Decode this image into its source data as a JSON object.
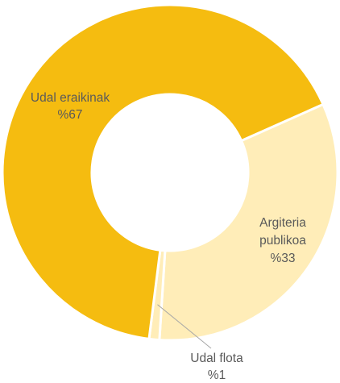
{
  "chart_data": {
    "type": "pie",
    "subtype": "donut",
    "title": "",
    "slices": [
      {
        "name_lines": [
          "Argiteria",
          "publikoa"
        ],
        "value_label": "%33",
        "value": 33,
        "color": "#FFEDB8"
      },
      {
        "name_lines": [
          "Udal flota"
        ],
        "value_label": "%1",
        "value": 1,
        "color": "#FFEDB8"
      },
      {
        "name_lines": [
          "Udal eraikinak"
        ],
        "value_label": "%67",
        "value": 67,
        "color": "#F5BC10"
      }
    ],
    "separator_color": "#ffffff",
    "leader_line_color": "#a6a6a6",
    "label_color": "#5a5a5a"
  }
}
